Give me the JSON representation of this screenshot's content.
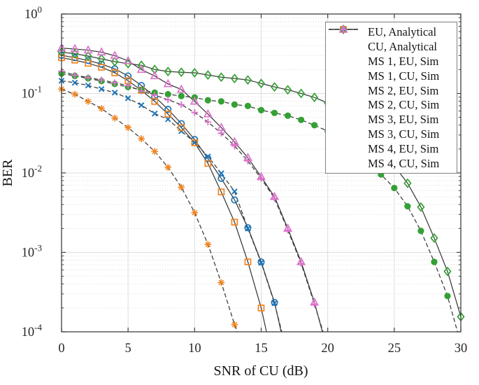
{
  "figure": {
    "background": "#ffffff",
    "axis_color": "#3f3f3f",
    "grid_major_color": "#dcdcdc",
    "grid_minor_color": "#d9d9d9",
    "analytical_line_color": "#3a3a3a",
    "tick_label_color": "#262626",
    "colors": {
      "ms1_blue": "#1b73b6",
      "ms2_orange": "#f08421",
      "ms3_green": "#33a133",
      "ms4_pink": "#dc74cb"
    }
  },
  "chart_data": {
    "type": "line",
    "title": "",
    "xlabel": "SNR of CU (dB)",
    "ylabel": "BER",
    "xlim": [
      0,
      30
    ],
    "ylog10_lim": [
      -4,
      0
    ],
    "x_ticks": [
      0,
      5,
      10,
      15,
      20,
      25,
      30
    ],
    "y_tick_exponents": [
      0,
      -1,
      -2,
      -3,
      -4
    ],
    "grid": "major solid gray; log minor dotted; vertical major every 5 dB",
    "legend_position": "top-right",
    "legend_items": [
      {
        "label": "EU, Analytical",
        "swatch": "solid-line",
        "color": "#3a3a3a"
      },
      {
        "label": "CU, Analytical",
        "swatch": "dashed-line",
        "color": "#3a3a3a"
      },
      {
        "label": "MS 1, EU, Sim",
        "swatch": "circle-open",
        "color": "#1b73b6"
      },
      {
        "label": "MS 1, CU, Sim",
        "swatch": "x",
        "color": "#1b73b6"
      },
      {
        "label": "MS 2, EU, Sim",
        "swatch": "square-open",
        "color": "#f08421"
      },
      {
        "label": "MS 2, CU, Sim",
        "swatch": "asterisk",
        "color": "#f08421"
      },
      {
        "label": "MS 3, EU, Sim",
        "swatch": "diamond-open",
        "color": "#33a133"
      },
      {
        "label": "MS 3, CU, Sim",
        "swatch": "circle-filled",
        "color": "#33a133"
      },
      {
        "label": "MS 4, EU, Sim",
        "swatch": "triangle-open",
        "color": "#dc74cb"
      },
      {
        "label": "MS 4, CU, Sim",
        "swatch": "plus",
        "color": "#dc74cb"
      }
    ],
    "series": [
      {
        "id": "ms1-eu",
        "label": "MS 1, EU, Sim",
        "marker": "circle-open",
        "color": "#1b73b6",
        "linestyle": "solid",
        "x_start": 0,
        "x_step": 1,
        "log10_ber": [
          -0.52,
          -0.55,
          -0.585,
          -0.63,
          -0.69,
          -0.78,
          -0.9,
          -1.04,
          -1.2,
          -1.38,
          -1.58,
          -1.82,
          -2.07,
          -2.34,
          -2.69,
          -3.12,
          -3.63
        ],
        "line_end": [
          16.5,
          -4.0
        ]
      },
      {
        "id": "ms1-cu",
        "label": "MS 1, CU, Sim",
        "marker": "x",
        "color": "#1b73b6",
        "linestyle": "dashed",
        "x_start": 0,
        "x_step": 1,
        "log10_ber": [
          -0.84,
          -0.865,
          -0.9,
          -0.945,
          -0.99,
          -1.06,
          -1.148,
          -1.254,
          -1.325,
          -1.474,
          -1.616,
          -1.793,
          -2.005,
          -2.234,
          -2.7,
          -3.13,
          -3.64
        ],
        "line_end": [
          16.55,
          -4.0
        ]
      },
      {
        "id": "ms2-eu",
        "label": "MS 2, EU, Sim",
        "marker": "square-open",
        "color": "#f08421",
        "linestyle": "solid",
        "x_start": 0,
        "x_step": 1,
        "log10_ber": [
          -0.55,
          -0.58,
          -0.62,
          -0.67,
          -0.74,
          -0.84,
          -0.96,
          -1.1,
          -1.26,
          -1.43,
          -1.62,
          -1.88,
          -2.24,
          -2.62,
          -3.12,
          -3.7
        ],
        "line_end": [
          15.4,
          -4.0
        ]
      },
      {
        "id": "ms2-cu",
        "label": "MS 2, CU, Sim",
        "marker": "asterisk",
        "color": "#f08421",
        "linestyle": "dashed",
        "x_start": 0,
        "x_step": 1,
        "log10_ber": [
          -0.945,
          -1.01,
          -1.1,
          -1.19,
          -1.31,
          -1.43,
          -1.57,
          -1.73,
          -1.93,
          -2.18,
          -2.5,
          -2.9,
          -3.38,
          -3.91
        ],
        "line_end": [
          13.2,
          -4.0
        ]
      },
      {
        "id": "ms3-eu",
        "label": "MS 3, EU, Sim",
        "marker": "diamond-open",
        "color": "#33a133",
        "linestyle": "solid",
        "x_start": 0,
        "x_step": 1,
        "log10_ber": [
          -0.48,
          -0.5,
          -0.53,
          -0.565,
          -0.6,
          -0.625,
          -0.645,
          -0.698,
          -0.724,
          -0.733,
          -0.74,
          -0.768,
          -0.795,
          -0.812,
          -0.83,
          -0.874,
          -0.918,
          -0.954,
          -1.0,
          -1.05,
          -1.12,
          -1.22,
          -1.36,
          -1.52,
          -1.71,
          -1.91,
          -2.13,
          -2.43,
          -2.82,
          -3.24,
          -3.81
        ]
      },
      {
        "id": "ms3-cu",
        "label": "MS 3, CU, Sim",
        "marker": "circle-filled",
        "color": "#33a133",
        "linestyle": "dashed",
        "x_start": 0,
        "x_step": 1,
        "log10_ber": [
          -0.75,
          -0.78,
          -0.81,
          -0.845,
          -0.88,
          -0.92,
          -0.955,
          -0.99,
          -1.01,
          -1.033,
          -1.05,
          -1.086,
          -1.1,
          -1.14,
          -1.157,
          -1.21,
          -1.245,
          -1.28,
          -1.333,
          -1.4,
          -1.474,
          -1.57,
          -1.7,
          -1.85,
          -2.02,
          -2.19,
          -2.42,
          -2.73,
          -3.12,
          -3.55
        ],
        "line_end": [
          29.75,
          -4.0
        ]
      },
      {
        "id": "ms4-eu",
        "label": "MS 4, EU, Sim",
        "marker": "triangle-open",
        "color": "#dc74cb",
        "linestyle": "solid",
        "x_start": 0,
        "x_step": 1,
        "log10_ber": [
          -0.43,
          -0.44,
          -0.456,
          -0.48,
          -0.525,
          -0.59,
          -0.7,
          -0.78,
          -0.88,
          -0.95,
          -1.1,
          -1.26,
          -1.43,
          -1.61,
          -1.81,
          -2.05,
          -2.3,
          -2.7,
          -3.12,
          -3.63
        ],
        "line_end": [
          19.6,
          -4.0
        ]
      },
      {
        "id": "ms4-cu",
        "label": "MS 4, CU, Sim",
        "marker": "plus",
        "color": "#dc74cb",
        "linestyle": "dashed",
        "x_start": 0,
        "x_step": 1,
        "log10_ber": [
          -0.72,
          -0.77,
          -0.8,
          -0.83,
          -0.865,
          -0.9,
          -0.97,
          -1.02,
          -1.08,
          -1.14,
          -1.24,
          -1.36,
          -1.5,
          -1.66,
          -1.85,
          -2.07,
          -2.32,
          -2.72,
          -3.14,
          -3.65
        ],
        "line_end": [
          19.65,
          -4.0
        ]
      }
    ]
  }
}
